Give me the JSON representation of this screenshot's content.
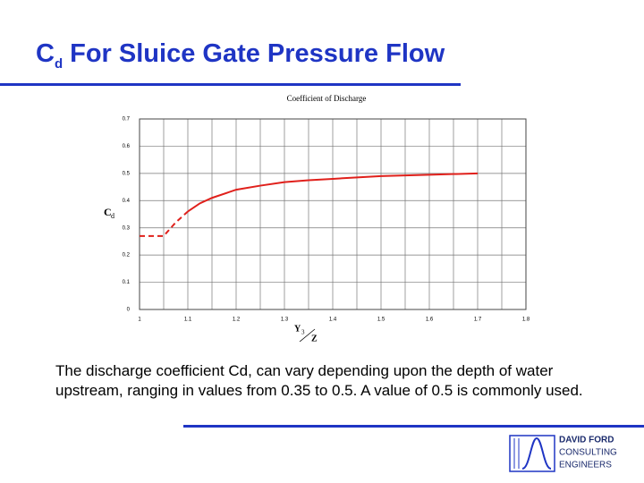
{
  "slide": {
    "title": {
      "main": "C",
      "sub": "d",
      "rest": "For Sluice Gate Pressure Flow"
    },
    "paragraph": "The discharge coefficient Cd, can vary depending upon the depth of water upstream, ranging in values from 0.35 to 0.5. A value of 0.5 is commonly used.",
    "logo": [
      "DAVID FORD",
      "CONSULTING",
      "ENGINEERS"
    ]
  },
  "chart_data": {
    "type": "line",
    "title": "Coefficient of Discharge",
    "y_label": {
      "main": "C",
      "sub": "d"
    },
    "x_label": {
      "top": "Y",
      "sub": "3",
      "bottom": "Z"
    },
    "series": [
      {
        "color": "#e0201b",
        "style": "dashed",
        "x": [
          1,
          1.05,
          1.075,
          1.1
        ],
        "values": [
          0.27,
          0.27,
          0.32,
          0.36
        ]
      },
      {
        "color": "#e0201b",
        "style": "solid",
        "x": [
          1.1,
          1.125,
          1.15,
          1.2,
          1.25,
          1.3,
          1.35,
          1.4,
          1.45,
          1.5,
          1.6,
          1.7
        ],
        "values": [
          0.36,
          0.39,
          0.41,
          0.44,
          0.455,
          0.468,
          0.475,
          0.48,
          0.485,
          0.49,
          0.495,
          0.5
        ]
      }
    ],
    "xlim": [
      1,
      1.8
    ],
    "ylim": [
      0,
      0.7
    ],
    "xticks": [
      1,
      1.1,
      1.2,
      1.3,
      1.4,
      1.5,
      1.6,
      1.7,
      1.8
    ],
    "xgrid": [
      1,
      1.05,
      1.1,
      1.15,
      1.2,
      1.25,
      1.3,
      1.35,
      1.4,
      1.45,
      1.5,
      1.55,
      1.6,
      1.65,
      1.7,
      1.75,
      1.8
    ],
    "yticks": [
      0,
      0.1,
      0.2,
      0.3,
      0.4,
      0.5,
      0.6,
      0.7
    ],
    "grid": true
  }
}
